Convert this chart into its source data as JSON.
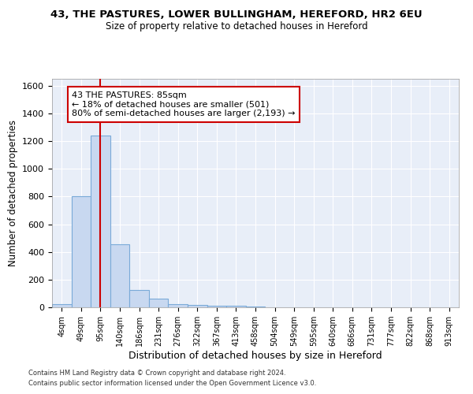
{
  "title_line1": "43, THE PASTURES, LOWER BULLINGHAM, HEREFORD, HR2 6EU",
  "title_line2": "Size of property relative to detached houses in Hereford",
  "xlabel": "Distribution of detached houses by size in Hereford",
  "ylabel": "Number of detached properties",
  "footer_line1": "Contains HM Land Registry data © Crown copyright and database right 2024.",
  "footer_line2": "Contains public sector information licensed under the Open Government Licence v3.0.",
  "categories": [
    "4sqm",
    "49sqm",
    "95sqm",
    "140sqm",
    "186sqm",
    "231sqm",
    "276sqm",
    "322sqm",
    "367sqm",
    "413sqm",
    "458sqm",
    "504sqm",
    "549sqm",
    "595sqm",
    "640sqm",
    "686sqm",
    "731sqm",
    "777sqm",
    "822sqm",
    "868sqm",
    "913sqm"
  ],
  "bar_heights": [
    25,
    805,
    1240,
    455,
    125,
    60,
    25,
    15,
    10,
    10,
    5,
    0,
    0,
    0,
    0,
    0,
    0,
    0,
    0,
    0,
    0
  ],
  "bar_color": "#c8d8f0",
  "bar_edge_color": "#7aaad8",
  "background_color": "#e8eef8",
  "grid_color": "#ffffff",
  "property_line_x": 2.0,
  "annotation_text": "43 THE PASTURES: 85sqm\n← 18% of detached houses are smaller (501)\n80% of semi-detached houses are larger (2,193) →",
  "annotation_box_color": "#ffffff",
  "annotation_box_edge_color": "#cc0000",
  "property_line_color": "#cc0000",
  "ylim": [
    0,
    1650
  ],
  "yticks": [
    0,
    200,
    400,
    600,
    800,
    1000,
    1200,
    1400,
    1600
  ]
}
